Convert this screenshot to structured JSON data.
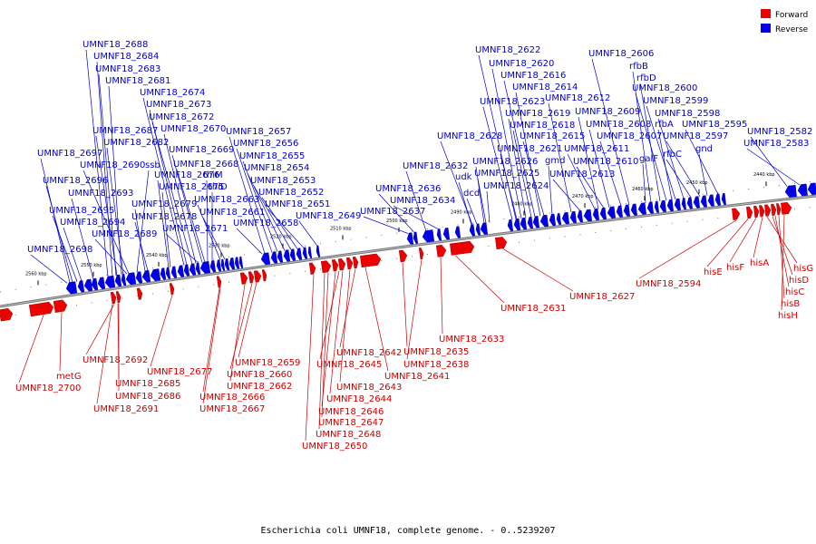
{
  "title": "Escherichia coli UMNF18, complete genome. - 0..5239207",
  "legend": [
    {
      "label": "Forward",
      "color": "#ee0000"
    },
    {
      "label": "Reverse",
      "color": "#0000ee"
    }
  ],
  "tick_labels": [
    "2560 kbp",
    "2550 kbp",
    "2540 kbp",
    "2530 kbp",
    "2520 kbp",
    "2510 kbp",
    "2500 kbp",
    "2490 kbp",
    "2480 kbp",
    "2470 kbp",
    "2460 kbp",
    "2450 kbp",
    "2440 kbp"
  ],
  "reverse_genes": [
    "UMNF18_2688",
    "UMNF18_2684",
    "UMNF18_2683",
    "UMNF18_2681",
    "UMNF18_2674",
    "UMNF18_2673",
    "UMNF18_2672",
    "UMNF18_2670",
    "UMNF18_2687",
    "UMNF18_2682",
    "UMNF18_2669",
    "UMNF18_2697",
    "UMNF18_2690",
    "ssb",
    "UMNF18_2668",
    "UMNF18_2696",
    "UMNF18_2676",
    "thiM",
    "UMNF18_2693",
    "UMNF18_2675",
    "thiD",
    "UMNF18_2679",
    "UMNF18_2663",
    "UMNF18_2695",
    "UMNF18_2678",
    "UMNF18_2661",
    "UMNF18_2694",
    "UMNF18_2671",
    "UMNF18_2689",
    "UMNF18_2698",
    "UMNF18_2657",
    "UMNF18_2656",
    "UMNF18_2655",
    "UMNF18_2654",
    "UMNF18_2653",
    "UMNF18_2652",
    "UMNF18_2651",
    "UMNF18_2658",
    "UMNF18_2649",
    "UMNF18_2632",
    "UMNF18_2636",
    "UMNF18_2634",
    "UMNF18_2637",
    "UMNF18_2628",
    "udk",
    "dcd",
    "UMNF18_2622",
    "UMNF18_2620",
    "UMNF18_2616",
    "UMNF18_2614",
    "UMNF18_2623",
    "UMNF18_2612",
    "UMNF18_2619",
    "UMNF18_2618",
    "UMNF18_2615",
    "UMNF18_2621",
    "gmd",
    "UMNF18_2626",
    "UMNF18_2625",
    "UMNF18_2624",
    "UMNF18_2613",
    "UMNF18_2611",
    "UMNF18_2610",
    "UMNF18_2609",
    "UMNF18_2608",
    "UMNF18_2607",
    "galF",
    "UMNF18_2606",
    "rfbB",
    "rfbD",
    "UMNF18_2600",
    "UMNF18_2599",
    "UMNF18_2598",
    "rfbA",
    "UMNF18_2595",
    "UMNF18_2597",
    "rfbC",
    "gnd",
    "UMNF18_2582",
    "UMNF18_2583"
  ],
  "forward_genes": [
    "UMNF18_2700",
    "metG",
    "UMNF18_2692",
    "UMNF18_2685",
    "UMNF18_2686",
    "UMNF18_2691",
    "UMNF18_2677",
    "UMNF18_2659",
    "UMNF18_2660",
    "UMNF18_2662",
    "UMNF18_2666",
    "UMNF18_2667",
    "UMNF18_2642",
    "UMNF18_2645",
    "UMNF18_2643",
    "UMNF18_2644",
    "UMNF18_2646",
    "UMNF18_2647",
    "UMNF18_2648",
    "UMNF18_2650",
    "UMNF18_2641",
    "UMNF18_2635",
    "UMNF18_2638",
    "UMNF18_2633",
    "UMNF18_2631",
    "UMNF18_2627",
    "UMNF18_2594",
    "hisE",
    "hisF",
    "hisA",
    "hisG",
    "hisD",
    "hisC",
    "hisB",
    "hisH"
  ]
}
